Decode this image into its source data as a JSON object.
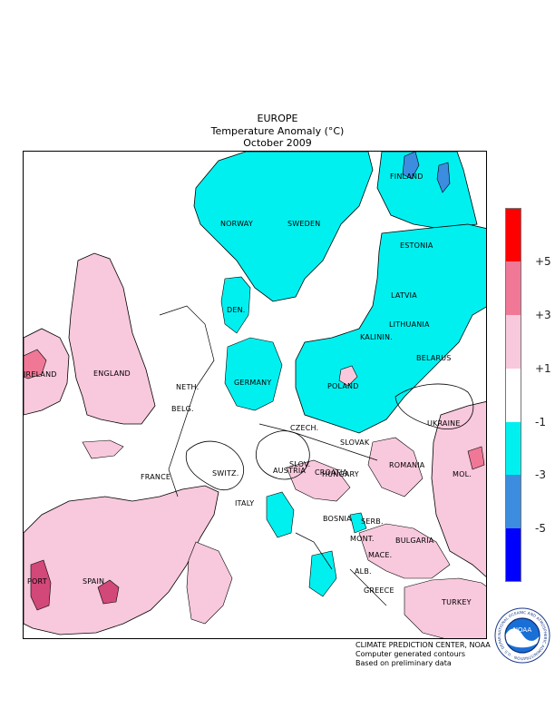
{
  "header": {
    "region": "EUROPE",
    "variable": "Temperature Anomaly (°C)",
    "period": "October 2009"
  },
  "legend": {
    "bins": [
      {
        "color": "#ff0000"
      },
      {
        "color": "#f07896"
      },
      {
        "color": "#f8c8dc"
      },
      {
        "color": "#ffffff"
      },
      {
        "color": "#00f0f0"
      },
      {
        "color": "#3c8ce0"
      },
      {
        "color": "#0000ff"
      }
    ],
    "labels": [
      "+5",
      "+3",
      "+1",
      "-1",
      "-3",
      "-5"
    ]
  },
  "countries": {
    "finland": "FINLAND",
    "norway": "NORWAY",
    "sweden": "SWEDEN",
    "estonia": "ESTONIA",
    "latvia": "LATVIA",
    "den": "DEN.",
    "lithuania": "LITHUANIA",
    "kalinin": "KALININ.",
    "belarus": "BELARUS",
    "ireland": "IRELAND",
    "england": "ENGLAND",
    "neth": "NETH.",
    "germany": "GERMANY",
    "poland": "POLAND",
    "belg": "BELG.",
    "czech": "CZECH.",
    "ukraine": "UKRAINE",
    "slovak": "SLOVAK",
    "mol": "MOL.",
    "france": "FRANCE",
    "switz": "SWITZ.",
    "austria": "AUSTRIA",
    "hungary": "HUNGARY",
    "slov": "SLOV.",
    "croatia": "CROATIA",
    "romania": "ROMANIA",
    "italy": "ITALY",
    "bosnia": "BOSNIA",
    "serb": "SERB.",
    "mont": "MONT.",
    "bulgaria": "BULGARIA",
    "mace": "MACE.",
    "alb": "ALB.",
    "greece": "GREECE",
    "port": "PORT",
    "spain": "SPAIN",
    "turkey": "TURKEY"
  },
  "credits": {
    "line1": "CLIMATE PREDICTION CENTER, NOAA",
    "line2": "Computer generated contours",
    "line3": "Based on preliminary data"
  },
  "logo": {
    "center_text": "NOAA",
    "ring_text": "NATIONAL OCEANIC AND ATMOSPHERIC ADMINISTRATION · U.S. DEPARTMENT OF COMMERCE"
  }
}
